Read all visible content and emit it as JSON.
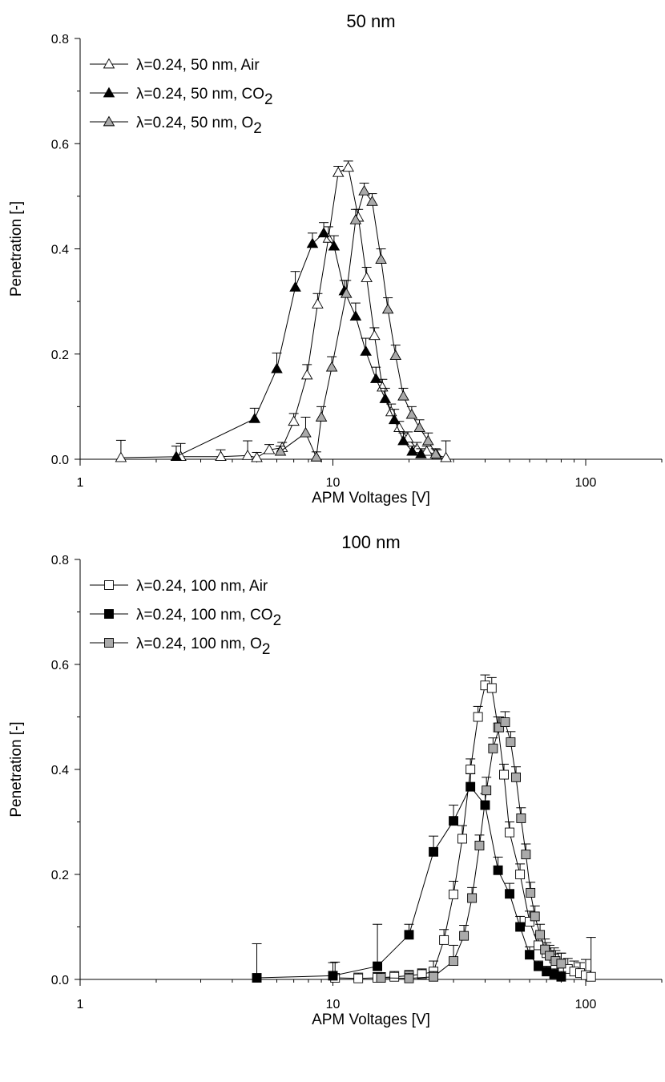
{
  "chart_data": [
    {
      "type": "scatter",
      "title": "50 nm",
      "xlabel": "APM Voltages [V]",
      "ylabel": "Penetration [-]",
      "x_scale": "log",
      "xlim": [
        1,
        200
      ],
      "ylim": [
        0,
        0.8
      ],
      "x_tick_labels": [
        "1",
        "10",
        "100"
      ],
      "y_tick_labels": [
        "0.0",
        "0.2",
        "0.4",
        "0.6",
        "0.8"
      ],
      "legend_position": "top-left",
      "series": [
        {
          "name": "λ=0.24, 50 nm, Air",
          "name_parts": [
            "λ=0.24, 50 nm, Air",
            ""
          ],
          "marker": "triangle",
          "fill": "#ffffff",
          "x": [
            1.45,
            2.5,
            3.6,
            4.6,
            5.0,
            5.6,
            6.3,
            7.0,
            7.9,
            8.7,
            9.6,
            10.5,
            11.5,
            12.6,
            13.6,
            14.6,
            15.7,
            17.0,
            18.3,
            19.8,
            21.5,
            23.5,
            25.8,
            28.0
          ],
          "y": [
            0.003,
            0.005,
            0.005,
            0.007,
            0.003,
            0.018,
            0.022,
            0.072,
            0.16,
            0.295,
            0.42,
            0.545,
            0.555,
            0.46,
            0.345,
            0.235,
            0.137,
            0.09,
            0.06,
            0.04,
            0.02,
            0.015,
            0.008,
            0.003
          ],
          "err": [
            0.033,
            0.025,
            0.013,
            0.028,
            0.01,
            0.01,
            0.01,
            0.015,
            0.02,
            0.02,
            0.022,
            0.012,
            0.012,
            0.015,
            0.02,
            0.015,
            0.015,
            0.015,
            0.012,
            0.012,
            0.012,
            0.01,
            0.01,
            0.032
          ]
        },
        {
          "name": "λ=0.24, 50 nm, CO2",
          "name_parts": [
            "λ=0.24, 50 nm, CO",
            "2"
          ],
          "marker": "triangle",
          "fill": "#000000",
          "x": [
            2.4,
            4.9,
            6.0,
            7.1,
            8.3,
            9.2,
            10.1,
            11.1,
            12.3,
            13.5,
            14.8,
            16.1,
            17.5,
            19.0,
            20.6,
            22.3
          ],
          "y": [
            0.005,
            0.077,
            0.172,
            0.327,
            0.41,
            0.43,
            0.405,
            0.32,
            0.272,
            0.205,
            0.153,
            0.115,
            0.075,
            0.035,
            0.015,
            0.01
          ],
          "err": [
            0.02,
            0.02,
            0.03,
            0.03,
            0.02,
            0.02,
            0.02,
            0.02,
            0.025,
            0.025,
            0.022,
            0.02,
            0.02,
            0.015,
            0.01,
            0.01
          ]
        },
        {
          "name": "λ=0.24, 50 nm, O2",
          "name_parts": [
            "λ=0.24, 50 nm, O",
            "2"
          ],
          "marker": "triangle",
          "fill": "#aaaaaa",
          "x": [
            6.2,
            7.8,
            8.6,
            9.0,
            9.9,
            11.3,
            12.3,
            13.3,
            14.3,
            15.5,
            16.5,
            17.7,
            19.0,
            20.5,
            22.0,
            23.8,
            25.5
          ],
          "y": [
            0.015,
            0.05,
            0.004,
            0.08,
            0.175,
            0.315,
            0.455,
            0.51,
            0.49,
            0.38,
            0.285,
            0.197,
            0.12,
            0.085,
            0.06,
            0.035,
            0.01
          ],
          "err": [
            0.01,
            0.03,
            0.01,
            0.02,
            0.02,
            0.025,
            0.02,
            0.015,
            0.015,
            0.02,
            0.022,
            0.02,
            0.015,
            0.015,
            0.015,
            0.015,
            0.01
          ]
        }
      ]
    },
    {
      "type": "scatter",
      "title": "100 nm",
      "xlabel": "APM Voltages [V]",
      "ylabel": "Penetration [-]",
      "x_scale": "log",
      "xlim": [
        1,
        200
      ],
      "ylim": [
        0,
        0.8
      ],
      "x_tick_labels": [
        "1",
        "10",
        "100"
      ],
      "y_tick_labels": [
        "0.0",
        "0.2",
        "0.4",
        "0.6",
        "0.8"
      ],
      "legend_position": "top-left",
      "series": [
        {
          "name": "λ=0.24, 100 nm, Air",
          "name_parts": [
            "λ=0.24, 100 nm, Air",
            ""
          ],
          "marker": "square",
          "fill": "#ffffff",
          "x": [
            10.2,
            12.6,
            15.0,
            17.5,
            20.0,
            22.5,
            25.0,
            27.5,
            30.0,
            32.5,
            35.0,
            37.5,
            40.0,
            42.5,
            45.0,
            47.5,
            50.0,
            55.0,
            60.0,
            65.0,
            70.0,
            75.0,
            80.0,
            85.0,
            90.0,
            95.0,
            100.0,
            105.0
          ],
          "y": [
            0.003,
            0.002,
            0.003,
            0.005,
            0.007,
            0.01,
            0.015,
            0.075,
            0.162,
            0.268,
            0.4,
            0.5,
            0.56,
            0.555,
            0.48,
            0.39,
            0.28,
            0.2,
            0.11,
            0.065,
            0.05,
            0.04,
            0.03,
            0.02,
            0.015,
            0.012,
            0.008,
            0.005
          ],
          "err": [
            0.03,
            0.01,
            0.01,
            0.01,
            0.01,
            0.01,
            0.02,
            0.02,
            0.025,
            0.025,
            0.02,
            0.02,
            0.02,
            0.02,
            0.02,
            0.02,
            0.02,
            0.02,
            0.02,
            0.02,
            0.02,
            0.02,
            0.02,
            0.02,
            0.02,
            0.02,
            0.03,
            0.075
          ]
        },
        {
          "name": "λ=0.24, 100 nm, CO2",
          "name_parts": [
            "λ=0.24, 100 nm, CO",
            "2"
          ],
          "marker": "square",
          "fill": "#000000",
          "x": [
            5.0,
            10.0,
            15.0,
            20.0,
            25.0,
            30.0,
            35.0,
            40.0,
            45.0,
            50.0,
            55.0,
            60.0,
            65.0,
            70.0,
            75.0,
            80.0
          ],
          "y": [
            0.003,
            0.007,
            0.025,
            0.085,
            0.243,
            0.302,
            0.367,
            0.332,
            0.208,
            0.163,
            0.1,
            0.047,
            0.025,
            0.015,
            0.01,
            0.005
          ],
          "err": [
            0.065,
            0.025,
            0.08,
            0.02,
            0.03,
            0.03,
            0.025,
            0.022,
            0.025,
            0.02,
            0.02,
            0.015,
            0.01,
            0.01,
            0.01,
            0.01
          ]
        },
        {
          "name": "λ=0.24, 100 nm, O2",
          "name_parts": [
            "λ=0.24, 100 nm, O",
            "2"
          ],
          "marker": "square",
          "fill": "#aaaaaa",
          "x": [
            15.5,
            20.0,
            25.0,
            30.0,
            33.0,
            35.5,
            38.0,
            40.5,
            43.0,
            45.5,
            48.0,
            50.5,
            53.0,
            55.5,
            58.0,
            60.5,
            63.0,
            66.0,
            69.0,
            72.0,
            76.0,
            80.0
          ],
          "y": [
            0.003,
            0.002,
            0.005,
            0.035,
            0.083,
            0.155,
            0.255,
            0.36,
            0.44,
            0.48,
            0.49,
            0.452,
            0.385,
            0.307,
            0.238,
            0.165,
            0.12,
            0.085,
            0.057,
            0.045,
            0.035,
            0.03
          ],
          "err": [
            0.01,
            0.01,
            0.01,
            0.03,
            0.02,
            0.02,
            0.02,
            0.025,
            0.02,
            0.02,
            0.02,
            0.02,
            0.02,
            0.02,
            0.02,
            0.02,
            0.02,
            0.02,
            0.02,
            0.02,
            0.02,
            0.02
          ]
        }
      ]
    }
  ]
}
